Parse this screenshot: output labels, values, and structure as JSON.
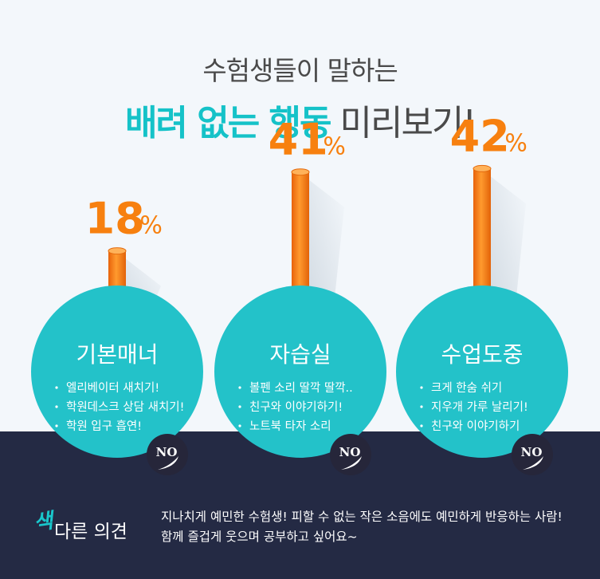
{
  "title": {
    "line1": "수험생들이 말하는",
    "line2_highlight": "배려 없는 행동",
    "line2_rest": "미리보기!"
  },
  "chart_data": {
    "type": "bar",
    "categories": [
      "기본매너",
      "자습실",
      "수업도중"
    ],
    "values": [
      18,
      41,
      42
    ],
    "unit": "%",
    "items": [
      {
        "category": "기본매너",
        "value": 18,
        "value_label": "18",
        "unit_label": "%",
        "bullets": [
          "엘리베이터 새치기!",
          "학원데스크 상담 새치기!",
          "학원 입구 흡연!"
        ],
        "badge": "NO"
      },
      {
        "category": "자습실",
        "value": 41,
        "value_label": "41",
        "unit_label": "%",
        "bullets": [
          "볼펜 소리 딸깍 딸깍..",
          "친구와 이야기하기!",
          "노트북 타자 소리"
        ],
        "badge": "NO"
      },
      {
        "category": "수업도중",
        "value": 42,
        "value_label": "42",
        "unit_label": "%",
        "bullets": [
          "크게 한숨 쉬기",
          "지우개 가루 날리기!",
          "친구와 이야기하기"
        ],
        "badge": "NO"
      }
    ]
  },
  "opinion": {
    "label_accent": "색",
    "label_rest": "다른 의견",
    "lines": [
      "지나치게 예민한 수험생! 피할 수 없는 작은 소음에도 예민하게 반응하는 사람!",
      "함께 즐겁게 웃으며 공부하고 싶어요~"
    ]
  },
  "colors": {
    "background": "#f3f7fb",
    "band": "#242a44",
    "circle": "#23c2c9",
    "accent_teal": "#15c2c8",
    "bar_orange": "#f7800f",
    "badge": "#26263a"
  }
}
